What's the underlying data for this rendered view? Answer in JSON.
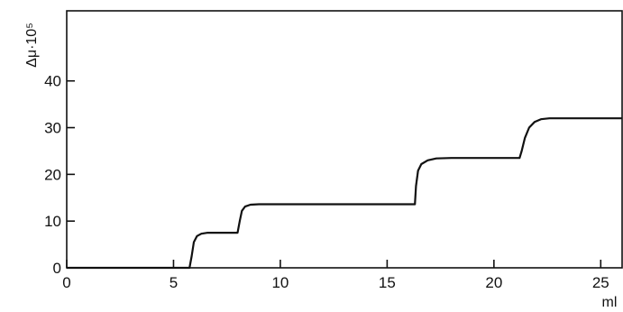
{
  "chart_data": {
    "type": "line",
    "title": "",
    "xlabel": "ml",
    "ylabel": "Δμ·10⁵",
    "xlim": [
      0,
      26
    ],
    "ylim": [
      0,
      55
    ],
    "xticks": [
      0,
      5,
      10,
      15,
      20,
      25
    ],
    "yticks": [
      0,
      10,
      20,
      30,
      40
    ],
    "grid": false,
    "legend": "none",
    "series": [
      {
        "x": [
          0,
          5.75,
          5.85,
          5.95,
          6.1,
          6.3,
          6.6,
          7.0,
          8.0,
          8.1,
          8.2,
          8.35,
          8.6,
          9.0,
          12.0,
          16.3,
          16.35,
          16.45,
          16.6,
          16.9,
          17.3,
          18.0,
          21.2,
          21.3,
          21.45,
          21.65,
          21.9,
          22.2,
          22.6,
          26
        ],
        "y": [
          0,
          0,
          2.5,
          5.5,
          6.8,
          7.3,
          7.5,
          7.5,
          7.5,
          10.0,
          12.2,
          13.1,
          13.5,
          13.6,
          13.6,
          13.6,
          17.5,
          20.8,
          22.2,
          23.0,
          23.4,
          23.5,
          23.5,
          25.0,
          27.8,
          30.0,
          31.2,
          31.8,
          32.0,
          32.0
        ]
      }
    ]
  }
}
